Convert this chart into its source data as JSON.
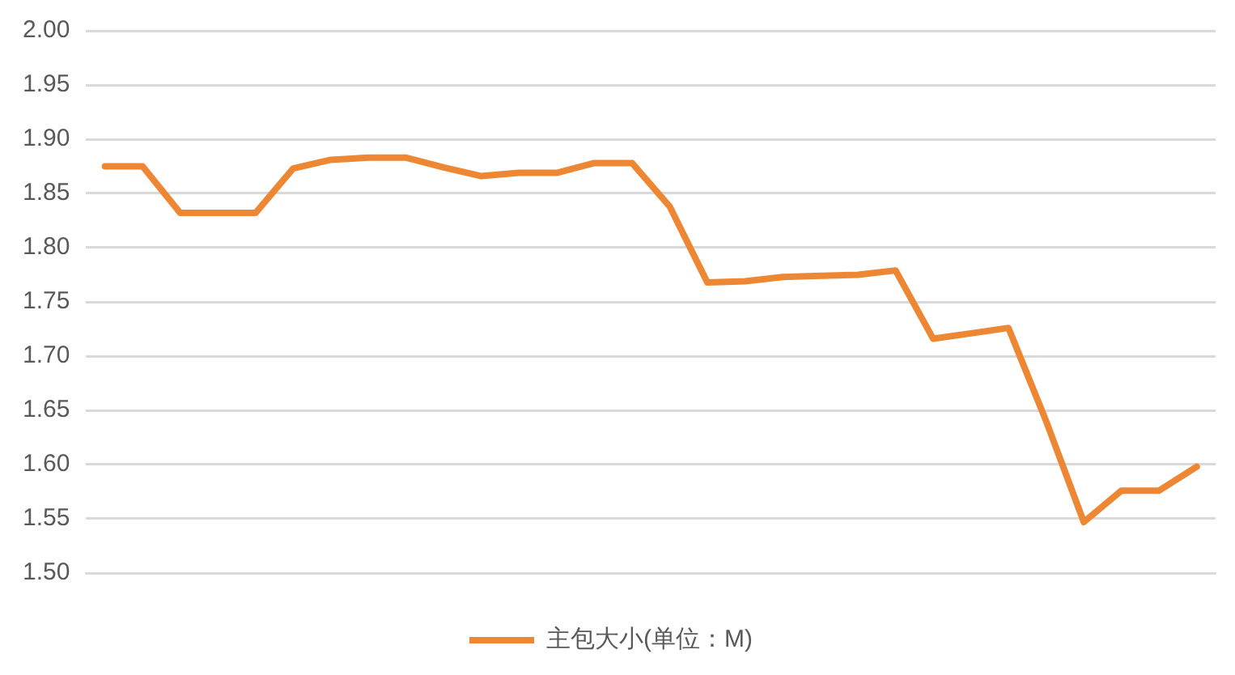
{
  "chart_data": {
    "type": "line",
    "categories": [
      null,
      null,
      null,
      null,
      null,
      null,
      null,
      null,
      null,
      null,
      null,
      null,
      null,
      null,
      null,
      null,
      null,
      null,
      null,
      null,
      null,
      null,
      null,
      null,
      null,
      null,
      null,
      null,
      null,
      null
    ],
    "series": [
      {
        "name": "主包大小(单位：M)",
        "color": "#ed8733",
        "values": [
          1.875,
          1.875,
          1.832,
          1.832,
          1.832,
          1.873,
          1.881,
          1.883,
          1.883,
          1.874,
          1.866,
          1.869,
          1.869,
          1.878,
          1.878,
          1.838,
          1.768,
          1.769,
          1.773,
          1.774,
          1.775,
          1.779,
          1.716,
          1.721,
          1.726,
          1.64,
          1.547,
          1.576,
          1.576,
          1.598
        ]
      }
    ],
    "ylim": [
      1.5,
      2.0
    ],
    "yticks": [
      {
        "value": 1.5,
        "label": "1.50"
      },
      {
        "value": 1.55,
        "label": "1.55"
      },
      {
        "value": 1.6,
        "label": "1.60"
      },
      {
        "value": 1.65,
        "label": "1.65"
      },
      {
        "value": 1.7,
        "label": "1.70"
      },
      {
        "value": 1.75,
        "label": "1.75"
      },
      {
        "value": 1.8,
        "label": "1.80"
      },
      {
        "value": 1.85,
        "label": "1.85"
      },
      {
        "value": 1.9,
        "label": "1.90"
      },
      {
        "value": 1.95,
        "label": "1.95"
      },
      {
        "value": 2.0,
        "label": "2.00"
      }
    ],
    "grid": "y",
    "legend": "bottom",
    "marker": "none",
    "line_style": "solid"
  }
}
